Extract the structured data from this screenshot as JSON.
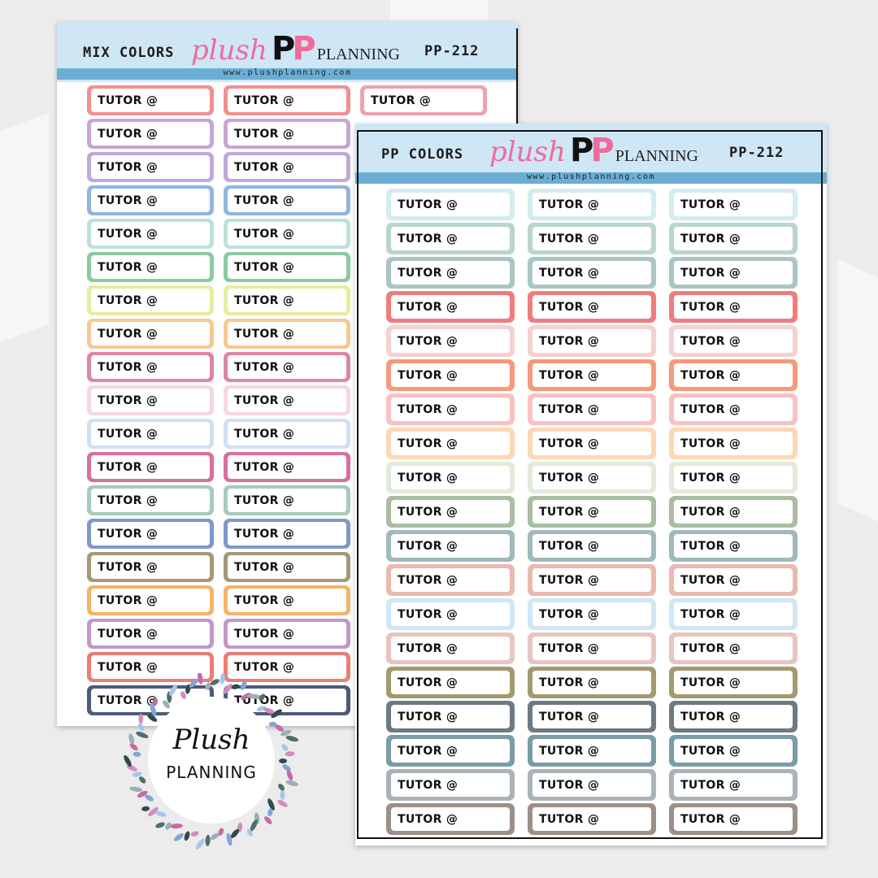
{
  "sheet_left": {
    "title": "MIX COLORS",
    "code": "PP-212",
    "url": "www.plushplanning.com",
    "logo": {
      "word1": "plush",
      "mark_left": "P",
      "mark_right": "P",
      "word2": "PLANNING"
    },
    "label_text": "TUTOR @",
    "columns": [
      [
        "#f28f92",
        "#c8a6d4",
        "#bfa9dc",
        "#8fb6df",
        "#bfe0dc",
        "#8ccaa1",
        "#e6eda0",
        "#f8c894",
        "#dc889f",
        "#f6d6e2",
        "#cfe0f5",
        "#d96f9c",
        "#a8cbb8",
        "#7f97c9",
        "#a49a78",
        "#f4b565",
        "#c297c9",
        "#e97f74",
        "#4d5a78"
      ],
      [
        "#f28f92",
        "#c8a6d4",
        "#bfa9dc",
        "#8fb6df",
        "#bfe0dc",
        "#8ccaa1",
        "#e6eda0",
        "#f8c894",
        "#dc889f",
        "#f6d6e2",
        "#cfe0f5",
        "#d96f9c",
        "#a8cbb8",
        "#7f97c9",
        "#a49a78",
        "#f4b565",
        "#c297c9",
        "#e97f74",
        "#4d5a78"
      ],
      [
        "#f0a0b0"
      ]
    ]
  },
  "sheet_right": {
    "title": "PP COLORS",
    "code": "PP-212",
    "url": "www.plushplanning.com",
    "logo": {
      "word1": "plush",
      "mark_left": "P",
      "mark_right": "P",
      "word2": "PLANNING"
    },
    "label_text": "TUTOR @",
    "row_colors": [
      "#d3ecef",
      "#b9d5cf",
      "#a9c6c4",
      "#f07c7e",
      "#f4d2cf",
      "#f59a7d",
      "#f8c2c2",
      "#fbd7b3",
      "#e2ebd8",
      "#a9bda3",
      "#9fb9bd",
      "#e9b9b0",
      "#d1e6f6",
      "#e6c6c1",
      "#a39a6e",
      "#6c7a86",
      "#7a9ca6",
      "#aab3b7",
      "#9d8f88"
    ]
  },
  "wreath": {
    "line1": "Plush",
    "line2": "PLANNING"
  },
  "colors": {
    "header_bg": "#cfe6f5",
    "header_band": "#6aaed6",
    "logo_pink": "#f06b9c"
  }
}
